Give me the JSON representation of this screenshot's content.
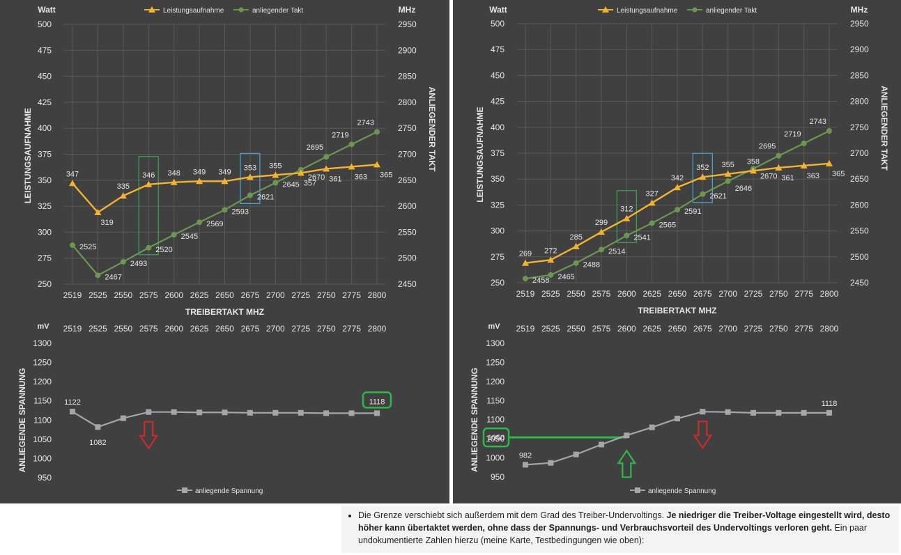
{
  "colors": {
    "power": "#f2b42e",
    "clock": "#6a9850",
    "voltage": "#a6a6a6",
    "panel": "#404040",
    "grid": "#595959",
    "text": "#e6e6e6",
    "blue_box": "#4aa9d6",
    "green_box": "#3aa655",
    "green_strong": "#2db84a",
    "red": "#cc2b2b"
  },
  "chart_data": [
    {
      "id": "left-top",
      "type": "line",
      "title": "",
      "legend": [
        "Leistungsaufnahme",
        "anliegender Takt"
      ],
      "legend_position": "top",
      "xlabel": "TREIBERTAKT MHZ",
      "ylabel": "LEISTUNGSAUFNAHME",
      "y2label": "ANLIEGENDER TAKT",
      "yunit": "Watt",
      "y2unit": "MHz",
      "categories": [
        "2519",
        "2525",
        "2550",
        "2575",
        "2600",
        "2625",
        "2650",
        "2675",
        "2700",
        "2725",
        "2750",
        "2775",
        "2800"
      ],
      "yticks": [
        "250",
        "275",
        "300",
        "325",
        "350",
        "375",
        "400",
        "425",
        "450",
        "475",
        "500"
      ],
      "y2ticks": [
        "2450",
        "2500",
        "2550",
        "2600",
        "2650",
        "2700",
        "2750",
        "2800",
        "2850",
        "2900",
        "2950"
      ],
      "ylim": [
        250,
        500
      ],
      "y2lim": [
        2450,
        2950
      ],
      "grid": true,
      "series": [
        {
          "name": "Leistungsaufnahme",
          "axis": "left",
          "marker": "triangle",
          "values": [
            347,
            319,
            335,
            346,
            348,
            349,
            349,
            353,
            355,
            357,
            361,
            363,
            365
          ]
        },
        {
          "name": "anliegender Takt",
          "axis": "right",
          "marker": "circle",
          "values": [
            2525,
            2467,
            2493,
            2520,
            2545,
            2569,
            2593,
            2621,
            2645,
            2670,
            2695,
            2719,
            2743
          ]
        }
      ],
      "highlights": [
        {
          "color": "green_box",
          "category": "2575"
        },
        {
          "color": "blue_box",
          "category": "2675"
        }
      ]
    },
    {
      "id": "right-top",
      "type": "line",
      "title": "",
      "legend": [
        "Leistungsaufnahme",
        "anliegender Takt"
      ],
      "legend_position": "top",
      "xlabel": "TREIBERTAKT MHZ",
      "ylabel": "LEISTUNGSAUFNAHME",
      "y2label": "ANLIEGENDER TAKT",
      "yunit": "Watt",
      "y2unit": "MHz",
      "categories": [
        "2519",
        "2525",
        "2550",
        "2575",
        "2600",
        "2625",
        "2650",
        "2675",
        "2700",
        "2725",
        "2750",
        "2775",
        "2800"
      ],
      "yticks": [
        "250",
        "275",
        "300",
        "325",
        "350",
        "375",
        "400",
        "425",
        "450",
        "475",
        "500"
      ],
      "y2ticks": [
        "2450",
        "2500",
        "2550",
        "2600",
        "2650",
        "2700",
        "2750",
        "2800",
        "2850",
        "2900",
        "2950"
      ],
      "ylim": [
        250,
        500
      ],
      "y2lim": [
        2450,
        2950
      ],
      "grid": true,
      "series": [
        {
          "name": "Leistungsaufnahme",
          "axis": "left",
          "marker": "triangle",
          "values": [
            269,
            272,
            285,
            299,
            312,
            327,
            342,
            352,
            355,
            358,
            361,
            363,
            365
          ]
        },
        {
          "name": "anliegender Takt",
          "axis": "right",
          "marker": "circle",
          "values": [
            2458,
            2465,
            2488,
            2514,
            2541,
            2565,
            2591,
            2621,
            2646,
            2670,
            2695,
            2719,
            2743
          ]
        }
      ],
      "highlights": [
        {
          "color": "green_box",
          "category": "2600"
        },
        {
          "color": "blue_box",
          "category": "2675"
        }
      ]
    },
    {
      "id": "left-bottom",
      "type": "line",
      "title": "",
      "legend": [
        "anliegende Spannung"
      ],
      "legend_position": "bottom",
      "ylabel": "ANLIEGENDE SPANNUNG",
      "yunit": "mV",
      "xaxis_position": "top",
      "categories": [
        "2519",
        "2525",
        "2550",
        "2575",
        "2600",
        "2625",
        "2650",
        "2675",
        "2700",
        "2725",
        "2750",
        "2775",
        "2800"
      ],
      "yticks": [
        "950",
        "1000",
        "1050",
        "1100",
        "1150",
        "1200",
        "1250",
        "1300"
      ],
      "ylim": [
        950,
        1300
      ],
      "grid": false,
      "series": [
        {
          "name": "anliegende Spannung",
          "marker": "square",
          "values": [
            1122,
            1082,
            1105,
            1121,
            1121,
            1120,
            1120,
            1119,
            1119,
            1119,
            1118,
            1118,
            1118
          ],
          "labels": [
            {
              "i": 0,
              "text": "1122"
            },
            {
              "i": 1,
              "text": "1082"
            },
            {
              "i": 12,
              "text": "1118",
              "boxed": true
            }
          ]
        }
      ],
      "arrows": [
        {
          "color": "red",
          "category": "2575",
          "direction": "down"
        }
      ]
    },
    {
      "id": "right-bottom",
      "type": "line",
      "title": "",
      "legend": [
        "anliegende Spannung"
      ],
      "legend_position": "bottom",
      "ylabel": "ANLIEGENDE SPANNUNG",
      "yunit": "mV",
      "xaxis_position": "top",
      "categories": [
        "2519",
        "2525",
        "2550",
        "2575",
        "2600",
        "2625",
        "2650",
        "2675",
        "2700",
        "2725",
        "2750",
        "2775",
        "2800"
      ],
      "yticks": [
        "950",
        "1000",
        "1050",
        "1100",
        "1150",
        "1200",
        "1250",
        "1300"
      ],
      "ylim": [
        950,
        1300
      ],
      "grid": false,
      "series": [
        {
          "name": "anliegende Spannung",
          "marker": "square",
          "values": [
            982,
            987,
            1009,
            1035,
            1059,
            1080,
            1103,
            1121,
            1120,
            1118,
            1118,
            1118,
            1118
          ],
          "labels": [
            {
              "i": 0,
              "text": "982"
            },
            {
              "i": 12,
              "text": "1118"
            }
          ]
        }
      ],
      "arrows": [
        {
          "color": "green_strong",
          "category": "2600",
          "direction": "up"
        },
        {
          "color": "red",
          "category": "2675",
          "direction": "down"
        }
      ],
      "callout": {
        "text": "1050",
        "value": 1050,
        "category": "2600"
      }
    }
  ],
  "note": {
    "text1": "Die Grenze verschiebt sich außerdem mit dem Grad des Treiber-Undervoltings. ",
    "text_bold": "Je niedriger die Treiber-Voltage eingestellt wird, desto höher kann übertaktet werden, ohne dass der Spannungs- und Verbrauchsvorteil des Undervoltings verloren geht.",
    "text2": " Ein paar undokumentierte Zahlen hierzu (meine Karte, Testbedingungen wie oben):"
  }
}
